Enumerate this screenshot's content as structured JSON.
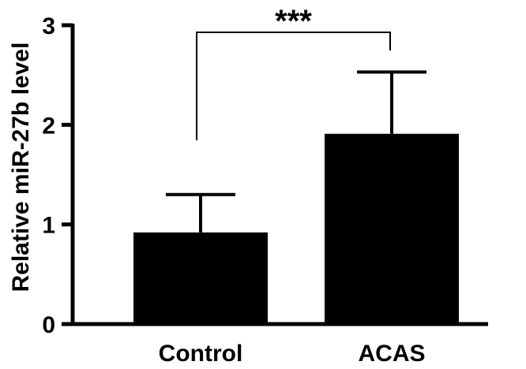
{
  "chart_data": {
    "type": "bar",
    "title": "",
    "xlabel": "",
    "ylabel": "Relative miR-27b level",
    "categories": [
      "Control",
      "ACAS"
    ],
    "values": [
      0.92,
      1.91
    ],
    "errors": [
      0.38,
      0.62
    ],
    "ylim": [
      0,
      3
    ],
    "yticks": [
      "0",
      "1",
      "2",
      "3"
    ],
    "grid": false,
    "legend": "none",
    "bar_color": "#000000",
    "significance": {
      "between": [
        0,
        1
      ],
      "label": "***"
    }
  }
}
